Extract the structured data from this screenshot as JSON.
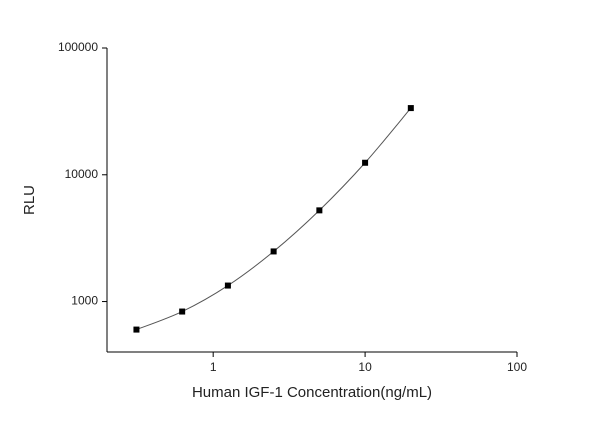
{
  "chart_data": {
    "type": "scatter",
    "x_label": "Human IGF-1 Concentration(ng/mL)",
    "y_label": "RLU",
    "x": [
      0.3125,
      0.625,
      1.25,
      2.5,
      5,
      10,
      20
    ],
    "values": [
      601,
      834,
      1337,
      2485,
      5240,
      12440,
      33580
    ],
    "color": "#000000",
    "curve": true,
    "curve_color": "#555555",
    "xscale": "log",
    "yscale": "log",
    "xlim": [
      0.2,
      100
    ],
    "xticks": [
      1,
      10,
      100
    ],
    "ylim": [
      400,
      100000
    ],
    "yticks": [
      1000,
      10000,
      100000
    ]
  }
}
